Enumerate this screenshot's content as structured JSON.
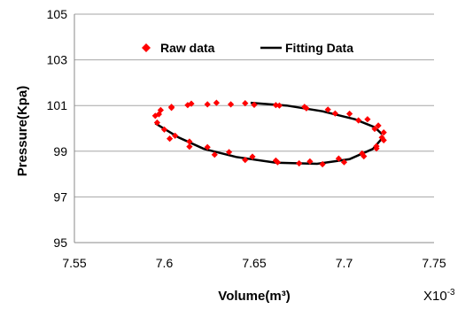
{
  "chart_data": {
    "type": "scatter",
    "xlabel": "Volume(m³)",
    "ylabel": "Pressure(Kpa)",
    "x_multiplier": "X10",
    "x_multiplier_exp": "-3",
    "xlim": [
      7.55,
      7.75
    ],
    "ylim": [
      95,
      105
    ],
    "xticks": [
      "7.55",
      "7.6",
      "7.65",
      "7.7",
      "7.75"
    ],
    "yticks": [
      "95",
      "97",
      "99",
      "101",
      "103",
      "105"
    ],
    "grid": "horizontal",
    "legend_position": "top",
    "colors": {
      "raw": "#ff0000",
      "fit": "#000000"
    },
    "series": [
      {
        "name": "Raw data",
        "kind": "scatter",
        "marker": "diamond",
        "x": [
          7.596,
          7.6,
          7.606,
          7.614,
          7.624,
          7.636,
          7.649,
          7.662,
          7.675,
          7.688,
          7.7,
          7.711,
          7.718,
          7.722,
          7.722,
          7.719,
          7.713,
          7.703,
          7.691,
          7.678,
          7.664,
          7.65,
          7.637,
          7.624,
          7.613,
          7.604,
          7.598,
          7.595,
          7.597,
          7.604,
          7.615,
          7.629,
          7.645,
          7.662,
          7.679,
          7.695,
          7.708,
          7.717,
          7.721,
          7.718,
          7.71,
          7.697,
          7.681,
          7.663,
          7.645,
          7.628,
          7.614,
          7.603
        ],
        "y": [
          100.25,
          99.95,
          99.68,
          99.42,
          99.18,
          98.96,
          98.76,
          98.59,
          98.47,
          98.43,
          98.52,
          98.78,
          99.12,
          99.48,
          99.82,
          100.12,
          100.4,
          100.64,
          100.82,
          100.94,
          101.0,
          101.03,
          101.05,
          101.05,
          101.02,
          100.94,
          100.8,
          100.55,
          100.62,
          100.9,
          101.08,
          101.12,
          101.1,
          101.02,
          100.88,
          100.65,
          100.35,
          99.98,
          99.6,
          99.22,
          98.9,
          98.68,
          98.55,
          98.52,
          98.62,
          98.85,
          99.2,
          99.55
        ]
      },
      {
        "name": "Fitting Data",
        "kind": "line",
        "x": [
          7.595,
          7.608,
          7.622,
          7.64,
          7.662,
          7.685,
          7.703,
          7.716,
          7.721
        ],
        "y": [
          100.22,
          99.6,
          99.1,
          98.75,
          98.5,
          98.45,
          98.65,
          99.1,
          99.55
        ],
        "x2": [
          7.648,
          7.668,
          7.688,
          7.706,
          7.717,
          7.721
        ],
        "y2": [
          101.12,
          101.0,
          100.75,
          100.4,
          100.05,
          99.75
        ]
      }
    ]
  }
}
